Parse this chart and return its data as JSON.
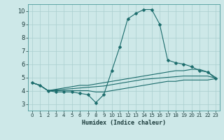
{
  "bg_color": "#cde8e8",
  "grid_color": "#b0d0d0",
  "line_color": "#1a6b6b",
  "xlabel": "Humidex (Indice chaleur)",
  "xlim": [
    -0.5,
    23.5
  ],
  "ylim": [
    2.5,
    10.5
  ],
  "xticks": [
    0,
    1,
    2,
    3,
    4,
    5,
    6,
    7,
    8,
    9,
    10,
    11,
    12,
    13,
    14,
    15,
    16,
    17,
    18,
    19,
    20,
    21,
    22,
    23
  ],
  "yticks": [
    3,
    4,
    5,
    6,
    7,
    8,
    9,
    10
  ],
  "line1": {
    "x": [
      0,
      1,
      2,
      3,
      4,
      5,
      6,
      7,
      8,
      9,
      10,
      11,
      12,
      13,
      14,
      15,
      16,
      17,
      18,
      19,
      20,
      21,
      22,
      23
    ],
    "y": [
      4.6,
      4.4,
      4.0,
      3.9,
      3.9,
      3.9,
      3.8,
      3.7,
      3.1,
      3.7,
      5.5,
      7.3,
      9.4,
      9.8,
      10.1,
      10.1,
      9.0,
      6.3,
      6.1,
      6.0,
      5.8,
      5.5,
      5.4,
      4.9
    ]
  },
  "line2": {
    "x": [
      0,
      1,
      2,
      3,
      4,
      5,
      6,
      7,
      8,
      9,
      10,
      11,
      12,
      13,
      14,
      15,
      16,
      17,
      18,
      19,
      20,
      21,
      22,
      23
    ],
    "y": [
      4.6,
      4.4,
      4.0,
      4.1,
      4.2,
      4.3,
      4.4,
      4.4,
      4.5,
      4.6,
      4.7,
      4.8,
      4.9,
      5.0,
      5.1,
      5.2,
      5.3,
      5.4,
      5.5,
      5.5,
      5.6,
      5.6,
      5.4,
      5.0
    ]
  },
  "line3": {
    "x": [
      0,
      1,
      2,
      3,
      4,
      5,
      6,
      7,
      8,
      9,
      10,
      11,
      12,
      13,
      14,
      15,
      16,
      17,
      18,
      19,
      20,
      21,
      22,
      23
    ],
    "y": [
      4.6,
      4.4,
      4.0,
      4.0,
      4.0,
      4.0,
      4.0,
      4.0,
      3.9,
      3.9,
      4.0,
      4.1,
      4.2,
      4.3,
      4.4,
      4.5,
      4.6,
      4.7,
      4.7,
      4.8,
      4.8,
      4.8,
      4.8,
      4.9
    ]
  },
  "line4": {
    "x": [
      0,
      1,
      2,
      3,
      4,
      5,
      6,
      7,
      8,
      9,
      10,
      11,
      12,
      13,
      14,
      15,
      16,
      17,
      18,
      19,
      20,
      21,
      22,
      23
    ],
    "y": [
      4.6,
      4.4,
      4.0,
      4.05,
      4.1,
      4.15,
      4.2,
      4.25,
      4.3,
      4.35,
      4.45,
      4.55,
      4.65,
      4.75,
      4.85,
      4.9,
      4.95,
      5.0,
      5.05,
      5.1,
      5.1,
      5.1,
      5.1,
      4.95
    ]
  }
}
